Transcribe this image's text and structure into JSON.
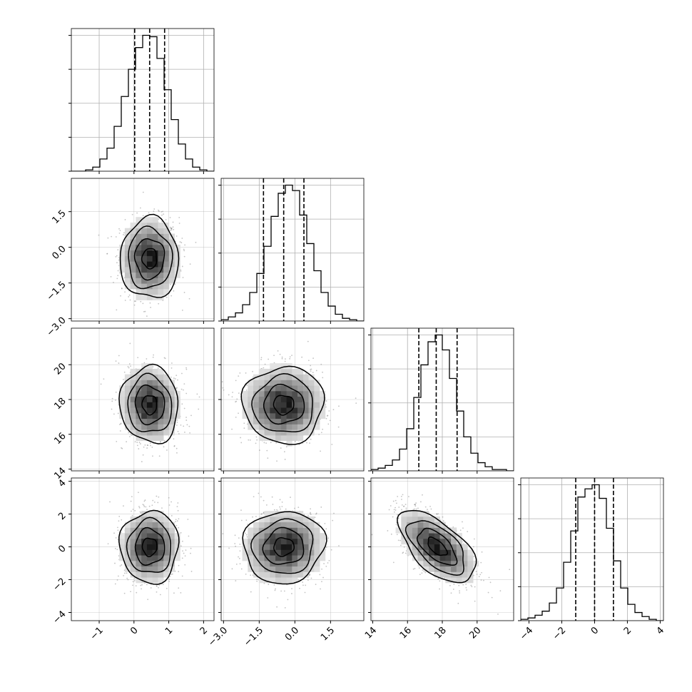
{
  "chart_data": {
    "type": "corner",
    "grid": true,
    "colors": {
      "line": "#000000",
      "grid": "#b0b0b0",
      "points": "#7a7a7a"
    },
    "parameters": [
      {
        "axis_range": [
          -1.8,
          2.3
        ],
        "ticks": [
          -1,
          0,
          1,
          2
        ],
        "tick_labels": [
          "−1",
          "0",
          "1",
          "2"
        ],
        "quantiles": [
          0.02,
          0.45,
          0.88
        ],
        "center": 0.45,
        "sd": 0.42
      },
      {
        "axis_range": [
          -3.1,
          2.9
        ],
        "ticks": [
          -3,
          -1.5,
          0,
          1.5
        ],
        "tick_labels": [
          "−3.0",
          "−1.5",
          "0.0",
          "1.5"
        ],
        "quantiles": [
          -1.32,
          -0.47,
          0.38
        ],
        "center": -0.47,
        "sd": 0.85
      },
      {
        "axis_range": [
          13.9,
          22.1
        ],
        "ticks": [
          14,
          16,
          18,
          20
        ],
        "tick_labels": [
          "14",
          "16",
          "18",
          "20"
        ],
        "quantiles": [
          16.65,
          17.65,
          18.85
        ],
        "center": 17.7,
        "sd": 1.1
      },
      {
        "axis_range": [
          -4.5,
          4.2
        ],
        "ticks": [
          -4,
          -2,
          0,
          2,
          4
        ],
        "tick_labels": [
          "−4",
          "−2",
          "0",
          "2",
          "4"
        ],
        "quantiles": [
          -1.15,
          0.0,
          1.15
        ],
        "center": 0.0,
        "sd": 1.1
      }
    ],
    "histograms": [
      {
        "bin_start": -1.8,
        "bin_width": 0.205,
        "counts": [
          0,
          0,
          1,
          3,
          9,
          17,
          33,
          55,
          75,
          91,
          100,
          99,
          83,
          60,
          38,
          20,
          9,
          3,
          1,
          0
        ]
      },
      {
        "bin_start": -3.1,
        "bin_width": 0.3,
        "counts": [
          1,
          3,
          6,
          12,
          21,
          35,
          55,
          77,
          94,
          100,
          96,
          78,
          57,
          37,
          21,
          11,
          5,
          2,
          1,
          0
        ]
      },
      {
        "bin_start": 13.9,
        "bin_width": 0.41,
        "counts": [
          1,
          2,
          4,
          8,
          16,
          31,
          54,
          78,
          95,
          100,
          89,
          68,
          44,
          25,
          13,
          6,
          3,
          1,
          1,
          0
        ]
      },
      {
        "bin_start": -4.5,
        "bin_width": 0.435,
        "counts": [
          1,
          2,
          4,
          7,
          13,
          24,
          43,
          66,
          91,
          97,
          100,
          90,
          68,
          44,
          24,
          12,
          6,
          3,
          1,
          0
        ]
      }
    ],
    "pair_correlations": {
      "1-0": 0.0,
      "2-0": -0.05,
      "2-1": 0.0,
      "3-0": 0.0,
      "3-1": 0.05,
      "3-2": -0.6
    },
    "contour_levels_sigma": [
      0.5,
      1.0,
      1.5,
      2.0
    ]
  }
}
